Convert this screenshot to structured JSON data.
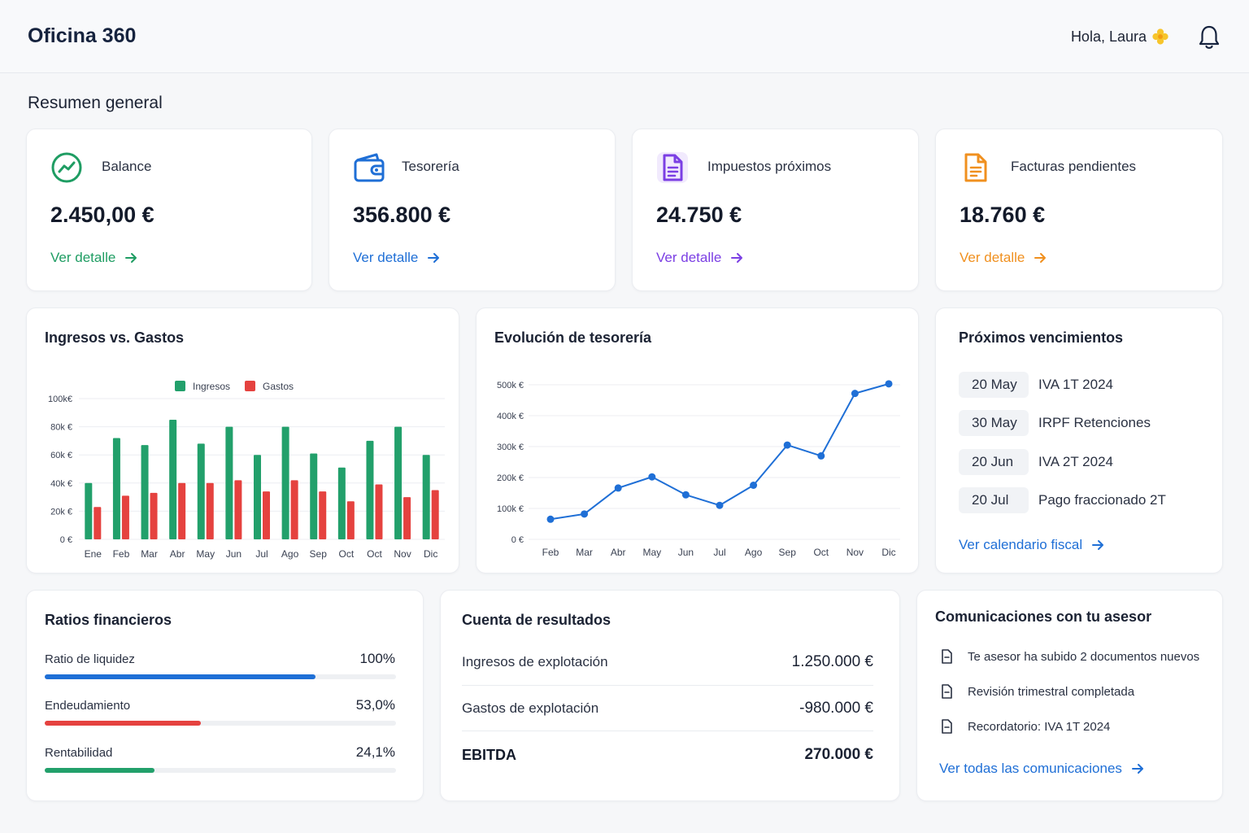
{
  "header": {
    "brand": "Oficina 360",
    "greeting": "Hola, Laura"
  },
  "section_title": "Resumen general",
  "kpis": [
    {
      "label": "Balance",
      "value": "2.450,00 €",
      "link": "Ver detalle",
      "color": "#1f9d63",
      "icon": "trend-icon"
    },
    {
      "label": "Tesorería",
      "value": "356.800 €",
      "link": "Ver detalle",
      "color": "#1f6fd6",
      "icon": "wallet-icon"
    },
    {
      "label": "Impuestos próximos",
      "value": "24.750 €",
      "link": "Ver detalle",
      "color": "#7b3fe4",
      "icon": "document-icon"
    },
    {
      "label": "Facturas pendientes",
      "value": "18.760 €",
      "link": "Ver detalle",
      "color": "#f0901f",
      "icon": "invoice-icon"
    }
  ],
  "income_chart": {
    "title": "Ingresos vs. Gastos"
  },
  "treasury_chart": {
    "title": "Evolución de tesorería"
  },
  "chart_data": [
    {
      "type": "bar",
      "title": "Ingresos vs. Gastos",
      "categories": [
        "Ene",
        "Feb",
        "Mar",
        "Abr",
        "May",
        "Jun",
        "Jul",
        "Ago",
        "Sep",
        "Oct",
        "Oct",
        "Nov",
        "Dic"
      ],
      "series": [
        {
          "name": "Ingresos",
          "color": "#22a06b",
          "values": [
            40,
            72,
            67,
            85,
            68,
            80,
            60,
            80,
            61,
            51,
            70,
            80,
            60
          ]
        },
        {
          "name": "Gastos",
          "color": "#e5423f",
          "values": [
            23,
            31,
            33,
            40,
            40,
            42,
            34,
            42,
            34,
            27,
            39,
            30,
            35
          ]
        }
      ],
      "ylim": [
        0,
        100
      ],
      "yticks": [
        "0 €",
        "20k €",
        "40k €",
        "60k €",
        "80k €",
        "100k€"
      ],
      "legend": "top-center",
      "grid": true
    },
    {
      "type": "line",
      "title": "Evolución de tesorería",
      "categories": [
        "Feb",
        "Mar",
        "Abr",
        "May",
        "Jun",
        "Jul",
        "Ago",
        "Sep",
        "Oct",
        "Nov",
        "Dic"
      ],
      "series": [
        {
          "color": "#1f6fd6",
          "values": [
            65,
            82,
            166,
            202,
            144,
            110,
            175,
            305,
            270,
            472,
            503
          ]
        }
      ],
      "ylim": [
        0,
        500
      ],
      "yticks": [
        "0 €",
        "100k €",
        "200k €",
        "300k €",
        "400k €",
        "500k €"
      ],
      "grid": true
    }
  ],
  "due": {
    "title": "Próximos vencimientos",
    "items": [
      {
        "date": "20 May",
        "text": "IVA 1T 2024"
      },
      {
        "date": "30 May",
        "text": "IRPF Retenciones"
      },
      {
        "date": "20 Jun",
        "text": "IVA 2T 2024"
      },
      {
        "date": "20 Jul",
        "text": "Pago fraccionado 2T"
      }
    ],
    "link": "Ver calendario fiscal"
  },
  "ratios": {
    "title": "Ratios financieros",
    "items": [
      {
        "label": "Ratio de liquidez",
        "value": "100%",
        "fill": 0.77,
        "color": "#1f6fd6"
      },
      {
        "label": "Endeudamiento",
        "value": "53,0%",
        "fill": 0.445,
        "color": "#e5423f"
      },
      {
        "label": "Rentabilidad",
        "value": "24,1%",
        "fill": 0.312,
        "color": "#22a06b"
      }
    ]
  },
  "pl": {
    "title": "Cuenta de resultados",
    "rows": [
      {
        "label": "Ingresos de explotación",
        "value": "1.250.000 €"
      },
      {
        "label": "Gastos de explotación",
        "value": "-980.000 €"
      },
      {
        "label": "EBITDA",
        "value": "270.000 €"
      }
    ]
  },
  "comms": {
    "title": "Comunicaciones con tu asesor",
    "items": [
      {
        "text": "Te asesor ha subido 2 documentos nuevos"
      },
      {
        "text": "Revisión trimestral completada"
      },
      {
        "text": "Recordatorio: IVA 1T 2024"
      }
    ],
    "link": "Ver todas las comunicaciones"
  }
}
